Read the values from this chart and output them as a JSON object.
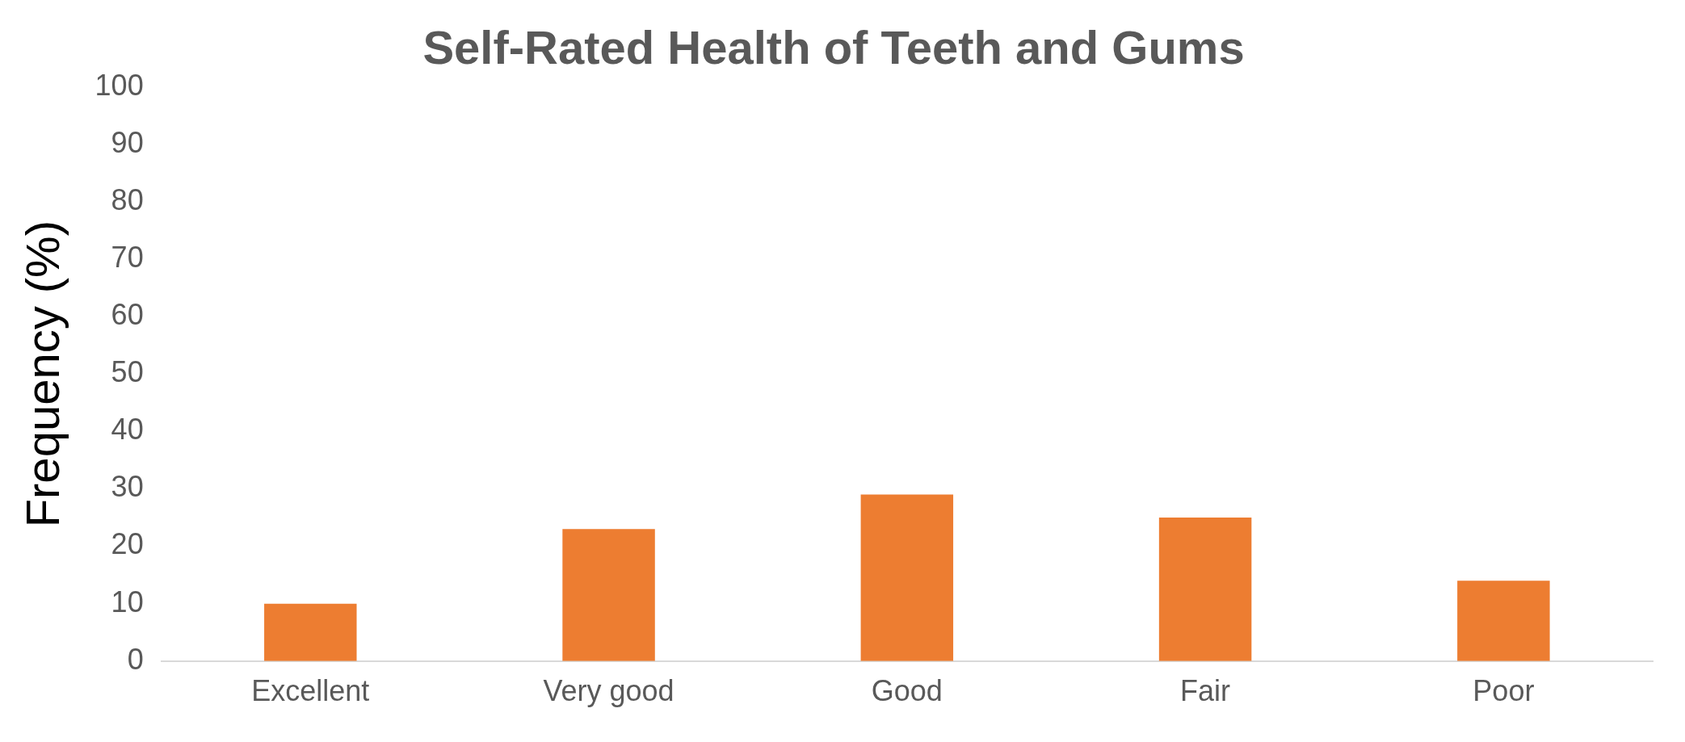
{
  "chart_data": {
    "type": "bar",
    "title": "Self-Rated Health of Teeth and Gums",
    "ylabel": "Frequency (%)",
    "categories": [
      "Excellent",
      "Very good",
      "Good",
      "Fair",
      "Poor"
    ],
    "values": [
      10,
      23,
      29,
      25,
      14
    ],
    "color": "#ed7d31",
    "ylim": [
      0,
      100
    ],
    "yticks": [
      0,
      10,
      20,
      30,
      40,
      50,
      60,
      70,
      80,
      90,
      100
    ],
    "grid": false,
    "legend": false
  }
}
